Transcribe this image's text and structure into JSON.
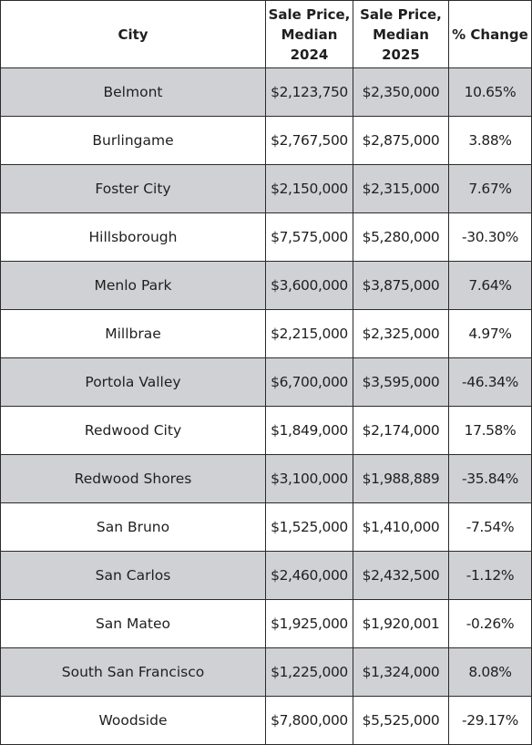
{
  "table": {
    "headers": {
      "city": "City",
      "price_2024": [
        "Sale Price,",
        "Median",
        "2024"
      ],
      "price_2025": [
        "Sale Price,",
        "Median",
        "2025"
      ],
      "change": "% Change"
    },
    "rows": [
      {
        "city": "Belmont",
        "price_2024": "$2,123,750",
        "price_2025": "$2,350,000",
        "change": "10.65%"
      },
      {
        "city": "Burlingame",
        "price_2024": "$2,767,500",
        "price_2025": "$2,875,000",
        "change": "3.88%"
      },
      {
        "city": "Foster City",
        "price_2024": "$2,150,000",
        "price_2025": "$2,315,000",
        "change": "7.67%"
      },
      {
        "city": "Hillsborough",
        "price_2024": "$7,575,000",
        "price_2025": "$5,280,000",
        "change": "-30.30%"
      },
      {
        "city": "Menlo Park",
        "price_2024": "$3,600,000",
        "price_2025": "$3,875,000",
        "change": "7.64%"
      },
      {
        "city": "Millbrae",
        "price_2024": "$2,215,000",
        "price_2025": "$2,325,000",
        "change": "4.97%"
      },
      {
        "city": "Portola Valley",
        "price_2024": "$6,700,000",
        "price_2025": "$3,595,000",
        "change": "-46.34%"
      },
      {
        "city": "Redwood City",
        "price_2024": "$1,849,000",
        "price_2025": "$2,174,000",
        "change": "17.58%"
      },
      {
        "city": "Redwood Shores",
        "price_2024": "$3,100,000",
        "price_2025": "$1,988,889",
        "change": "-35.84%"
      },
      {
        "city": "San Bruno",
        "price_2024": "$1,525,000",
        "price_2025": "$1,410,000",
        "change": "-7.54%"
      },
      {
        "city": "San Carlos",
        "price_2024": "$2,460,000",
        "price_2025": "$2,432,500",
        "change": "-1.12%"
      },
      {
        "city": "San Mateo",
        "price_2024": "$1,925,000",
        "price_2025": "$1,920,001",
        "change": "-0.26%"
      },
      {
        "city": "South San Francisco",
        "price_2024": "$1,225,000",
        "price_2025": "$1,324,000",
        "change": "8.08%"
      },
      {
        "city": "Woodside",
        "price_2024": "$7,800,000",
        "price_2025": "$5,525,000",
        "change": "-29.17%"
      }
    ],
    "shaded_row_color": "#d0d1d5",
    "plain_row_color": "#ffffff",
    "border_color": "#2b2b2b"
  }
}
